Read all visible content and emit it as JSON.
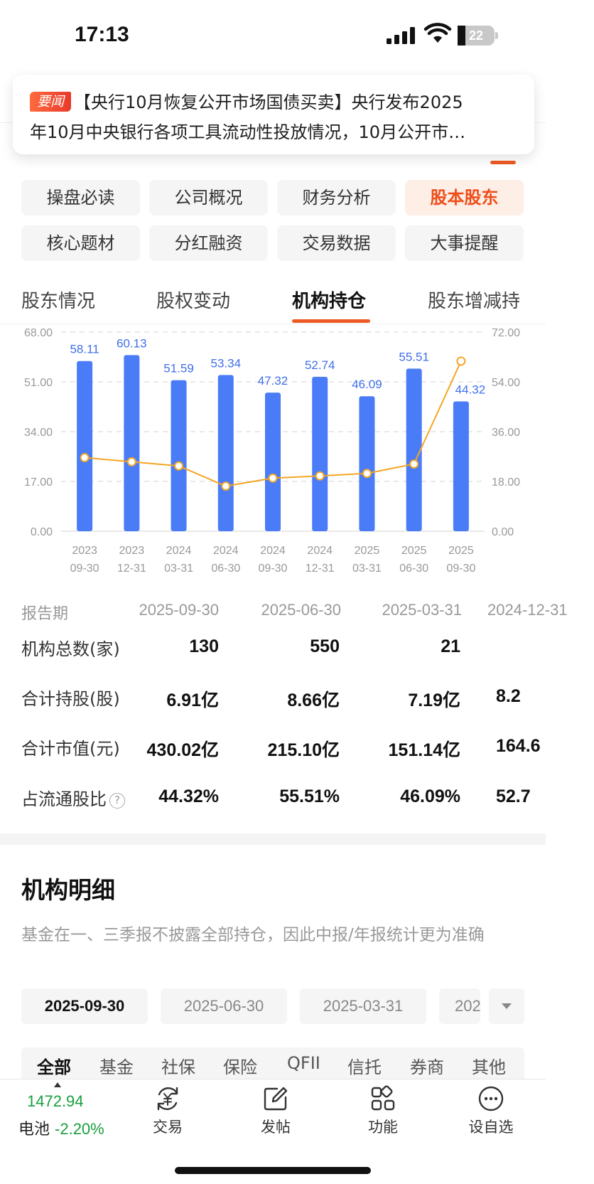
{
  "status_bar": {
    "time": "17:13",
    "battery": "22",
    "battery_level": 0.22
  },
  "news": {
    "tag": "要闻",
    "line1": "【央行10月恢复公开市场国债买卖】央行发布2025",
    "line2": "年10月中央银行各项工具流动性投放情况，10月公开市…"
  },
  "sections": {
    "items": [
      "操盘必读",
      "公司概况",
      "财务分析",
      "股本股东",
      "核心题材",
      "分红融资",
      "交易数据",
      "大事提醒"
    ],
    "active": "股本股东"
  },
  "subtabs": {
    "items": [
      "股东情况",
      "股权变动",
      "机构持仓",
      "股东增减持"
    ],
    "active": "机构持仓"
  },
  "colors": {
    "accent": "#ee5a24",
    "bar": "#4a7cf7",
    "line": "#f5a623",
    "down": "#1a9e3f"
  },
  "chart_data": {
    "type": "bar",
    "categories": [
      "2023\n09-30",
      "2023\n12-31",
      "2024\n03-31",
      "2024\n06-30",
      "2024\n09-30",
      "2024\n12-31",
      "2025\n03-31",
      "2025\n06-30",
      "2025\n09-30"
    ],
    "series": [
      {
        "type": "bar",
        "axis": "left",
        "values": [
          58.11,
          60.13,
          51.59,
          53.34,
          47.32,
          52.74,
          46.09,
          55.51,
          44.32
        ]
      },
      {
        "type": "line",
        "axis": "right",
        "values": [
          26.6,
          25.1,
          23.6,
          16.3,
          19.2,
          20.0,
          20.9,
          24.3,
          61.5
        ]
      }
    ],
    "left_axis": {
      "ticks": [
        "68.00",
        "51.00",
        "34.00",
        "17.00",
        "0.00"
      ],
      "range": [
        0,
        68
      ]
    },
    "right_axis": {
      "ticks": [
        "72.00",
        "54.00",
        "36.00",
        "18.00",
        "0.00"
      ],
      "range": [
        0,
        72
      ]
    },
    "grid": true
  },
  "table": {
    "header_label": "报告期",
    "periods": [
      "2025-09-30",
      "2025-06-30",
      "2025-03-31",
      "2024-12-31"
    ],
    "rows": [
      {
        "label": "机构总数(家)",
        "values": [
          "130",
          "550",
          "21",
          ""
        ]
      },
      {
        "label": "合计持股(股)",
        "values": [
          "6.91亿",
          "8.66亿",
          "7.19亿",
          "8.2"
        ]
      },
      {
        "label": "合计市值(元)",
        "values": [
          "430.02亿",
          "215.10亿",
          "151.14亿",
          "164.6"
        ]
      },
      {
        "label": "占流通股比",
        "values": [
          "44.32%",
          "55.51%",
          "46.09%",
          "52.7"
        ],
        "help": "?"
      }
    ]
  },
  "institutions": {
    "title": "机构明细",
    "note": "基金在一、三季报不披露全部持仓，因此中报/年报统计更为准确",
    "dates": [
      "2025-09-30",
      "2025-06-30",
      "2025-03-31",
      "202"
    ],
    "active_date": "2025-09-30",
    "types": [
      "全部",
      "基金",
      "社保",
      "保险",
      "QFII",
      "信托",
      "券商",
      "其他"
    ],
    "active_type": "全部"
  },
  "bottom_bar": {
    "quote": {
      "price": "1472.94",
      "name": "电池",
      "change": "-2.20%"
    },
    "items": [
      {
        "label": "交易",
        "icon": "yuan-exchange-icon"
      },
      {
        "label": "发帖",
        "icon": "edit-icon"
      },
      {
        "label": "功能",
        "icon": "grid-icon"
      },
      {
        "label": "设自选",
        "icon": "more-icon"
      }
    ]
  }
}
